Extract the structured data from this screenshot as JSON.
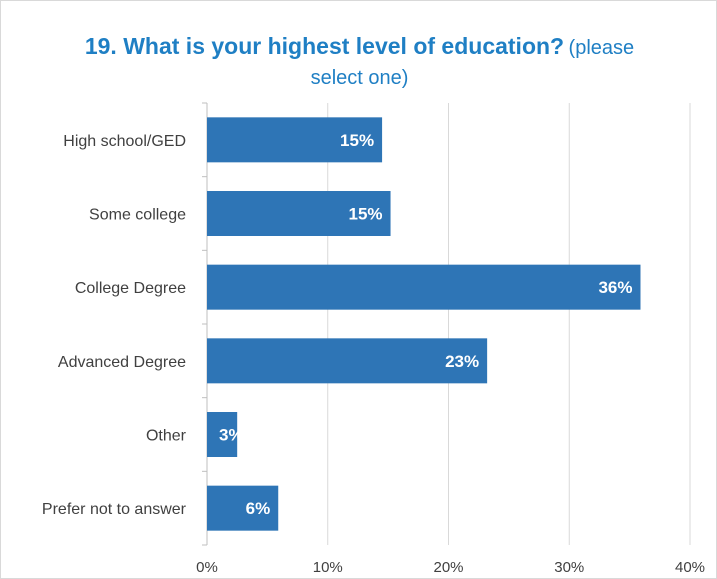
{
  "chart_data": {
    "type": "bar",
    "orientation": "horizontal",
    "title": "19. What is your highest level of education?",
    "subtitle_part1": "(please",
    "subtitle_part2": "select one)",
    "categories": [
      "High school/GED",
      "Some college",
      "College Degree",
      "Advanced Degree",
      "Other",
      "Prefer not to answer"
    ],
    "values": [
      14.5,
      15.2,
      35.9,
      23.2,
      2.5,
      5.9
    ],
    "data_labels": [
      "15%",
      "15%",
      "36%",
      "23%",
      "3%",
      "6%"
    ],
    "xlim": [
      0,
      40
    ],
    "x_ticks": [
      0,
      10,
      20,
      30,
      40
    ],
    "x_tick_labels": [
      "0%",
      "10%",
      "20%",
      "30%",
      "40%"
    ],
    "grid": true,
    "colors": {
      "bar": "#2e75b6",
      "title": "#1f7fc4",
      "grid": "#d9d9d9",
      "axis": "#bfbfbf"
    }
  }
}
